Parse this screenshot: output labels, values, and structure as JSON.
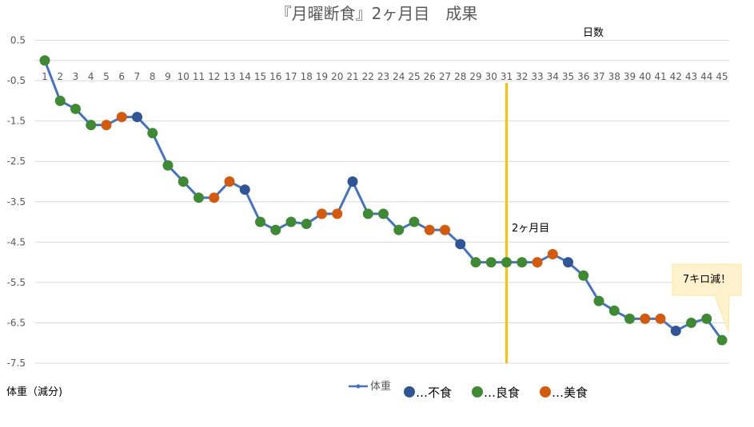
{
  "chart_data": {
    "type": "line",
    "title": "『月曜断食』2ヶ月目　成果",
    "xlabel": "日数",
    "ylabel": "体重（減分)",
    "ylim": [
      -7.5,
      0.5
    ],
    "yticks": [
      "0.5",
      "-0.5",
      "-1.5",
      "-2.5",
      "-3.5",
      "-4.5",
      "-5.5",
      "-6.5",
      "-7.5"
    ],
    "grid": true,
    "x": [
      1,
      2,
      3,
      4,
      5,
      6,
      7,
      8,
      9,
      10,
      11,
      12,
      13,
      14,
      15,
      16,
      17,
      18,
      19,
      20,
      21,
      22,
      23,
      24,
      25,
      26,
      27,
      28,
      29,
      30,
      31,
      32,
      33,
      34,
      35,
      36,
      37,
      38,
      39,
      40,
      41,
      42,
      43,
      44,
      45
    ],
    "series": [
      {
        "name": "体重",
        "color": "#4472C4",
        "values": [
          0,
          -1.0,
          -1.2,
          -1.6,
          -1.6,
          -1.4,
          -1.4,
          -1.8,
          -2.6,
          -3.0,
          -3.4,
          -3.4,
          -3.0,
          -3.2,
          -4.0,
          -4.2,
          -4.0,
          -4.05,
          -3.8,
          -3.8,
          -3.0,
          -3.8,
          -3.8,
          -4.2,
          -4.0,
          -4.2,
          -4.2,
          -4.55,
          -5.0,
          -5.0,
          -5.0,
          -5.0,
          -5.0,
          -4.8,
          -5.0,
          -5.33,
          -5.96,
          -6.2,
          -6.4,
          -6.4,
          -6.4,
          -6.7,
          -6.5,
          -6.4,
          -6.93
        ]
      }
    ],
    "point_categories": [
      "良",
      "良",
      "良",
      "良",
      "美",
      "美",
      "不",
      "良",
      "良",
      "良",
      "良",
      "美",
      "美",
      "不",
      "良",
      "良",
      "良",
      "良",
      "美",
      "美",
      "不",
      "良",
      "良",
      "良",
      "良",
      "美",
      "美",
      "不",
      "良",
      "良",
      "良",
      "良",
      "美",
      "美",
      "不",
      "良",
      "良",
      "良",
      "良",
      "美",
      "美",
      "不",
      "良",
      "良",
      "良"
    ],
    "category_legend": [
      {
        "key": "不",
        "label": "…不食",
        "color": "#2F5597"
      },
      {
        "key": "良",
        "label": "…良食",
        "color": "#3E8A33"
      },
      {
        "key": "美",
        "label": "…美食",
        "color": "#D65A0B"
      }
    ],
    "annotations": {
      "marker_day": 31,
      "marker_label": "2ヶ月目",
      "marker_color": "#FFC000",
      "callout": "7キロ減！",
      "callout_bg": "#FFF2CC"
    }
  }
}
